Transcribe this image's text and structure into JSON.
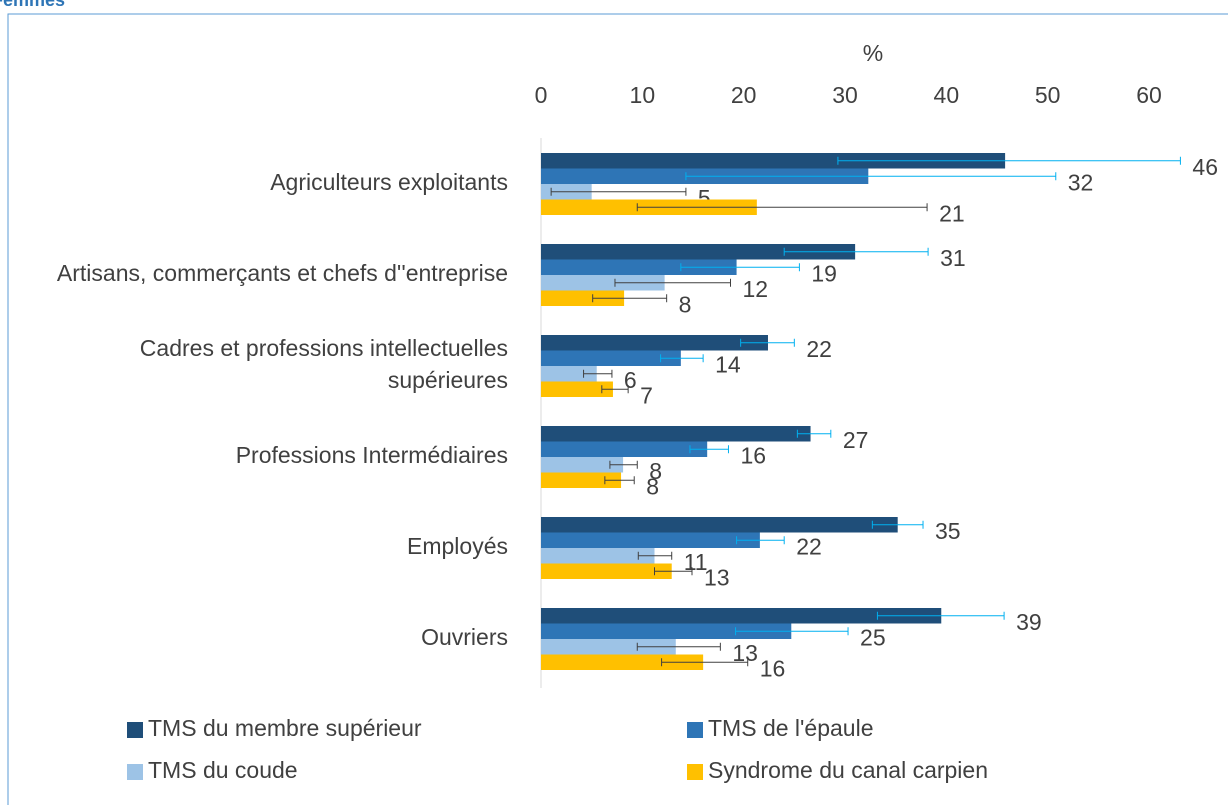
{
  "chart_data": {
    "type": "hbar",
    "title": "Femmes",
    "xlabel": "%",
    "xlim": [
      0,
      60
    ],
    "xticks": [
      0,
      10,
      20,
      30,
      40,
      50,
      60
    ],
    "categories": [
      "Agriculteurs exploitants",
      "Artisans, commerçants et chefs d''entreprise",
      "Cadres et professions intellectuelles supérieures",
      "Professions Intermédiaires",
      "Employés",
      "Ouvriers"
    ],
    "series": [
      {
        "name": "TMS du membre supérieur",
        "color": "#1f4e79",
        "error_color": "#00b0f0",
        "values": [
          45.8,
          31.0,
          22.4,
          26.6,
          35.2,
          39.5
        ],
        "value_labels": [
          "46",
          "31",
          "22",
          "27",
          "35",
          "39"
        ],
        "ci": [
          [
            29.3,
            63.1
          ],
          [
            24.0,
            38.2
          ],
          [
            19.7,
            25.0
          ],
          [
            25.3,
            28.6
          ],
          [
            32.7,
            37.7
          ],
          [
            33.2,
            45.7
          ]
        ]
      },
      {
        "name": "TMS de l'épaule",
        "color": "#2e75b6",
        "error_color": "#00b0f0",
        "values": [
          32.3,
          19.3,
          13.8,
          16.4,
          21.6,
          24.7
        ],
        "value_labels": [
          "32",
          "19",
          "14",
          "16",
          "22",
          "25"
        ],
        "ci": [
          [
            14.3,
            50.8
          ],
          [
            13.8,
            25.5
          ],
          [
            11.8,
            16.0
          ],
          [
            14.7,
            18.5
          ],
          [
            19.3,
            24.0
          ],
          [
            19.2,
            30.3
          ]
        ]
      },
      {
        "name": "TMS du coude",
        "color": "#9dc3e6",
        "error_color": "#404040",
        "values": [
          5.0,
          12.2,
          5.5,
          8.1,
          11.2,
          13.3
        ],
        "value_labels": [
          "5",
          "12",
          "6",
          "8",
          "11",
          "13"
        ],
        "ci": [
          [
            1.0,
            14.3
          ],
          [
            7.3,
            18.7
          ],
          [
            4.2,
            7.0
          ],
          [
            6.8,
            9.5
          ],
          [
            9.6,
            12.9
          ],
          [
            9.5,
            17.7
          ]
        ]
      },
      {
        "name": "Syndrome du canal carpien",
        "color": "#ffc000",
        "error_color": "#404040",
        "values": [
          21.3,
          8.2,
          7.1,
          7.9,
          12.9,
          16.0
        ],
        "value_labels": [
          "21",
          "8",
          "7",
          "8",
          "13",
          "16"
        ],
        "ci": [
          [
            9.5,
            38.1
          ],
          [
            5.1,
            12.4
          ],
          [
            6.0,
            8.6
          ],
          [
            6.3,
            9.2
          ],
          [
            11.2,
            14.9
          ],
          [
            11.9,
            20.4
          ]
        ]
      }
    ]
  }
}
